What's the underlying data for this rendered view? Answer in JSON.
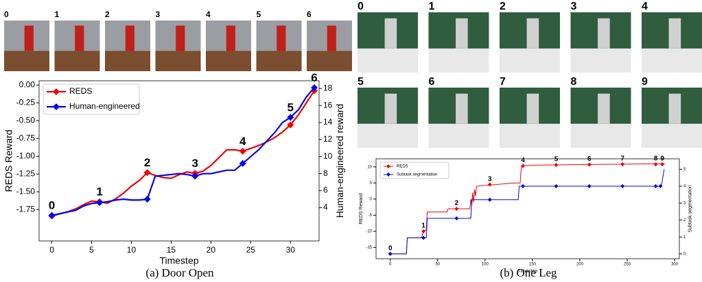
{
  "chart_data": [
    {
      "type": "line",
      "xlabel": "Timestep",
      "ylabel": "REDS Reward",
      "y2label": "Human-engineered reward",
      "xlim": [
        -1.6,
        33.6
      ],
      "xticks": [
        0,
        5,
        10,
        15,
        20,
        25,
        30
      ],
      "ylim": [
        -2.19,
        0.06
      ],
      "yticks": [
        {
          "value": 0,
          "label": "0.00"
        },
        -0.25,
        {
          "value": -0.5,
          "label": "-0.50"
        },
        -0.75,
        {
          "value": -1,
          "label": "-1.00"
        },
        -1.25,
        {
          "value": -1.5,
          "label": "-1.50"
        },
        -1.75
      ],
      "y2lim": [
        0.1,
        18.9
      ],
      "y2ticks": [
        4,
        6,
        8,
        10,
        12,
        14,
        16,
        18
      ],
      "legend": "upper left",
      "series": [
        {
          "name": "REDS",
          "color": "#f00000",
          "x": [
            0,
            1,
            2,
            3,
            4,
            5,
            6,
            7,
            8,
            9,
            10,
            11,
            12,
            13,
            14,
            15,
            16,
            17,
            18,
            19,
            20,
            21,
            22,
            23,
            24,
            25,
            26,
            27,
            28,
            29,
            30,
            31,
            32,
            33
          ],
          "values": [
            -1.84,
            -1.81,
            -1.78,
            -1.74,
            -1.68,
            -1.63,
            -1.64,
            -1.66,
            -1.6,
            -1.52,
            -1.42,
            -1.34,
            -1.23,
            -1.27,
            -1.3,
            -1.31,
            -1.26,
            -1.22,
            -1.24,
            -1.21,
            -1.13,
            -1.02,
            -0.91,
            -0.91,
            -0.93,
            -0.89,
            -0.85,
            -0.8,
            -0.74,
            -0.66,
            -0.56,
            -0.42,
            -0.25,
            -0.08
          ],
          "markers": {
            "x": [
              0,
              6,
              12,
              18,
              24,
              30,
              33
            ],
            "values": [
              -1.84,
              -1.64,
              -1.23,
              -1.24,
              -0.93,
              -0.56,
              -0.08
            ]
          }
        },
        {
          "name": "Human-engineered",
          "color": "#0000f0",
          "axis": "y2",
          "x": [
            0,
            1,
            2,
            3,
            4,
            5,
            6,
            7,
            8,
            9,
            10,
            11,
            12,
            13,
            14,
            15,
            16,
            17,
            18,
            19,
            20,
            21,
            22,
            23,
            24,
            25,
            26,
            27,
            28,
            29,
            30,
            31,
            32,
            33
          ],
          "values": [
            3.1,
            3.3,
            3.5,
            3.7,
            4.2,
            4.5,
            4.6,
            4.7,
            4.9,
            5,
            4.9,
            4.9,
            5,
            7.7,
            7.8,
            7.9,
            8,
            7.9,
            7.7,
            8,
            8,
            8.2,
            8.4,
            8.4,
            9.2,
            10,
            10.8,
            11.8,
            12.8,
            14,
            14.6,
            15.5,
            17,
            18.1
          ],
          "markers": {
            "x": [
              0,
              6,
              12,
              18,
              24,
              30,
              33
            ],
            "values": [
              3.1,
              4.6,
              5,
              7.7,
              9.2,
              14.6,
              18.1
            ]
          }
        }
      ],
      "annotations": [
        {
          "text": "0",
          "x": 0
        },
        {
          "text": "1",
          "x": 6
        },
        {
          "text": "2",
          "x": 12
        },
        {
          "text": "3",
          "x": 18
        },
        {
          "text": "4",
          "x": 24
        },
        {
          "text": "5",
          "x": 30
        },
        {
          "text": "6",
          "x": 33
        }
      ]
    },
    {
      "type": "line",
      "xlabel": "Timestep",
      "ylabel": "REDS Reward",
      "y2label": "Subtask segmentation",
      "xlim": [
        -15,
        305
      ],
      "xticks": [
        0,
        50,
        100,
        150,
        200,
        250,
        300
      ],
      "ylim": [
        -18.5,
        12.5
      ],
      "yticks": [
        -15,
        -10,
        -5,
        0,
        5,
        10
      ],
      "y2lim": [
        -0.286,
        5.619
      ],
      "y2ticks": [
        0,
        1,
        2,
        3,
        4,
        5
      ],
      "legend": "upper left",
      "series": [
        {
          "name": "REDS",
          "color": "#f00000",
          "x": [
            0,
            17,
            18,
            33,
            35,
            38,
            39,
            60,
            61,
            84,
            85,
            86,
            87,
            88,
            89,
            90,
            91,
            130,
            137,
            138,
            139,
            150,
            290
          ],
          "values": [
            -17,
            -17,
            -12,
            -12,
            -10,
            -9.5,
            -4,
            -4,
            -3,
            -3,
            0,
            -2,
            2,
            -1,
            3,
            1,
            4,
            5,
            5,
            9,
            10.3,
            10.5,
            11
          ],
          "markers": {
            "x": [
              0,
              35,
              70,
              105,
              140,
              175,
              210,
              245,
              280,
              287
            ],
            "values": [
              -17,
              -10,
              -3,
              4.5,
              10.3,
              10.6,
              10.7,
              10.8,
              10.8,
              10.8
            ]
          }
        },
        {
          "name": "Subtask segmentation",
          "color": "#0000f0",
          "axis": "y2",
          "x": [
            0,
            17,
            18,
            38,
            39,
            85,
            86,
            135,
            136,
            285,
            286,
            289
          ],
          "values": [
            0,
            0,
            0.95,
            0.95,
            2.1,
            2.1,
            3.2,
            3.2,
            4,
            4,
            4,
            5
          ],
          "markers": {
            "x": [
              0,
              35,
              70,
              105,
              140,
              175,
              210,
              245,
              280,
              285
            ],
            "values": [
              0,
              0.95,
              2.1,
              3.2,
              4,
              4,
              4,
              4,
              4,
              4
            ]
          }
        }
      ],
      "annotations": [
        {
          "text": "0",
          "x": 0
        },
        {
          "text": "1",
          "x": 35
        },
        {
          "text": "2",
          "x": 70
        },
        {
          "text": "3",
          "x": 105
        },
        {
          "text": "4",
          "x": 140
        },
        {
          "text": "5",
          "x": 175
        },
        {
          "text": "6",
          "x": 210
        },
        {
          "text": "7",
          "x": 245
        },
        {
          "text": "8",
          "x": 280
        },
        {
          "text": "9",
          "x": 287
        }
      ]
    }
  ],
  "panels": [
    {
      "caption": "(a) Door Open",
      "frames": [
        "0",
        "1",
        "2",
        "3",
        "4",
        "5",
        "6"
      ]
    },
    {
      "caption": "(b) One Leg",
      "frames": [
        "0",
        "1",
        "2",
        "3",
        "4",
        "5",
        "6",
        "7",
        "8",
        "9"
      ]
    }
  ]
}
